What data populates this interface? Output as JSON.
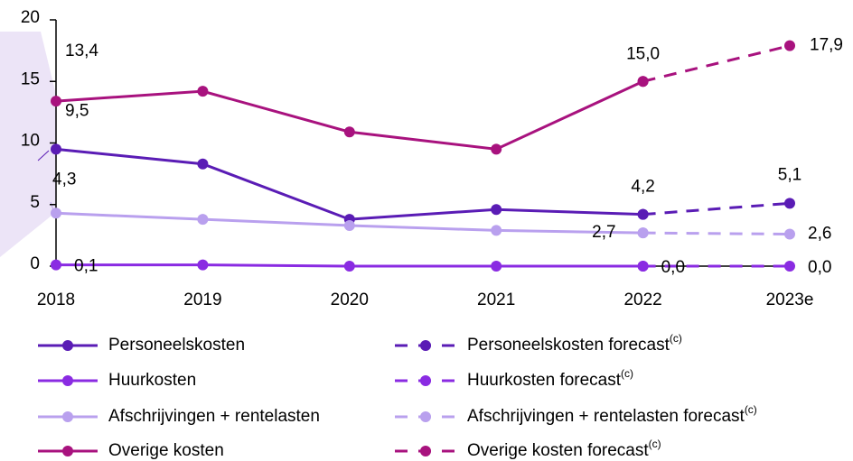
{
  "chart_data": {
    "type": "line",
    "categories": [
      "2018",
      "2019",
      "2020",
      "2021",
      "2022",
      "2023e"
    ],
    "ylim": [
      0,
      20
    ],
    "yticks": [
      0,
      5,
      10,
      15,
      20
    ],
    "footnote_marker": "(c)",
    "series": [
      {
        "name": "Personeelskosten",
        "color": "#5a1cb5",
        "dashed": false,
        "values": [
          9.5,
          8.3,
          3.8,
          4.6,
          4.2,
          null
        ],
        "value_labels": [
          "9,5",
          null,
          null,
          null,
          null,
          null
        ]
      },
      {
        "name": "Huurkosten",
        "color": "#8a2be2",
        "dashed": false,
        "values": [
          0.1,
          0.1,
          0.0,
          0.0,
          0.0,
          null
        ],
        "value_labels": [
          "0,1",
          null,
          null,
          null,
          null,
          null
        ]
      },
      {
        "name": "Afschrijvingen + rentelasten",
        "color": "#b9a0ee",
        "dashed": false,
        "values": [
          4.3,
          3.8,
          3.3,
          2.9,
          2.7,
          null
        ],
        "value_labels": [
          "4,3",
          null,
          null,
          null,
          "2,7",
          null
        ]
      },
      {
        "name": "Overige kosten",
        "color": "#a8127e",
        "dashed": false,
        "values": [
          13.4,
          14.2,
          10.9,
          9.5,
          15.0,
          null
        ],
        "value_labels": [
          "13,4",
          null,
          null,
          null,
          null,
          null
        ]
      },
      {
        "name": "Personeelskosten forecast",
        "color": "#5a1cb5",
        "dashed": true,
        "values": [
          null,
          null,
          null,
          null,
          4.2,
          5.1
        ],
        "value_labels": [
          null,
          null,
          null,
          null,
          "4,2",
          "5,1"
        ]
      },
      {
        "name": "Huurkosten forecast",
        "color": "#8a2be2",
        "dashed": true,
        "values": [
          null,
          null,
          null,
          null,
          0.0,
          0.0
        ],
        "value_labels": [
          null,
          null,
          null,
          null,
          "0,0",
          "0,0"
        ]
      },
      {
        "name": "Afschrijvingen + rentelasten forecast",
        "color": "#b9a0ee",
        "dashed": true,
        "values": [
          null,
          null,
          null,
          null,
          2.7,
          2.6
        ],
        "value_labels": [
          null,
          null,
          null,
          null,
          null,
          "2,6"
        ]
      },
      {
        "name": "Overige kosten forecast",
        "color": "#a8127e",
        "dashed": true,
        "values": [
          null,
          null,
          null,
          null,
          15.0,
          17.9
        ],
        "value_labels": [
          null,
          null,
          null,
          null,
          "15,0",
          "17,9"
        ]
      }
    ]
  }
}
